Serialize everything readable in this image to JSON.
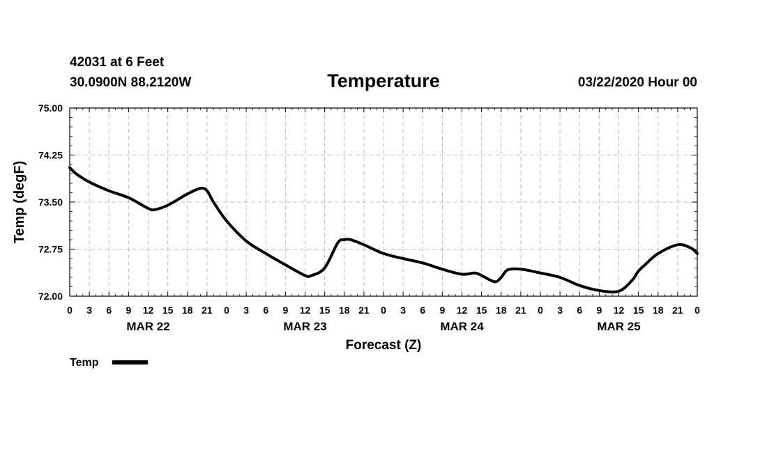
{
  "header": {
    "station": "42031 at 6 Feet",
    "location": "30.0900N 88.2120W",
    "title": "Temperature",
    "datetime": "03/22/2020 Hour 00"
  },
  "chart_data": {
    "type": "line",
    "title": "Temperature",
    "xlabel": "Forecast (Z)",
    "ylabel": "Temp (degF)",
    "ylim": [
      72.0,
      75.0
    ],
    "xlim": [
      0,
      96
    ],
    "grid": true,
    "legend": "bottom-left",
    "y_ticks": [
      "72.00",
      "72.75",
      "73.50",
      "74.25",
      "75.00"
    ],
    "x_tick_labels": [
      "0",
      "3",
      "6",
      "9",
      "12",
      "15",
      "18",
      "21",
      "0",
      "3",
      "6",
      "9",
      "12",
      "15",
      "18",
      "21",
      "0",
      "3",
      "6",
      "9",
      "12",
      "15",
      "18",
      "21",
      "0",
      "3",
      "6",
      "9",
      "12",
      "15",
      "18",
      "21",
      "0"
    ],
    "date_labels": [
      "MAR 22",
      "MAR 23",
      "MAR 24",
      "MAR 25"
    ],
    "series": [
      {
        "name": "Temp",
        "color": "#000000",
        "x": [
          0,
          1,
          3,
          6,
          9,
          12,
          13,
          15,
          18,
          20,
          21,
          22,
          24,
          27,
          30,
          33,
          36,
          37,
          39,
          41,
          42,
          43,
          45,
          48,
          51,
          54,
          57,
          60,
          62,
          63,
          65,
          66,
          67,
          69,
          72,
          75,
          78,
          81,
          84,
          86,
          87,
          88,
          90,
          93,
          95,
          96
        ],
        "values": [
          74.05,
          73.95,
          73.82,
          73.68,
          73.57,
          73.4,
          73.38,
          73.45,
          73.63,
          73.72,
          73.68,
          73.5,
          73.2,
          72.88,
          72.68,
          72.5,
          72.33,
          72.33,
          72.45,
          72.85,
          72.9,
          72.9,
          72.82,
          72.68,
          72.6,
          72.53,
          72.43,
          72.35,
          72.37,
          72.33,
          72.23,
          72.3,
          72.42,
          72.43,
          72.37,
          72.3,
          72.17,
          72.09,
          72.08,
          72.25,
          72.4,
          72.5,
          72.68,
          72.82,
          72.77,
          72.68
        ]
      }
    ]
  }
}
